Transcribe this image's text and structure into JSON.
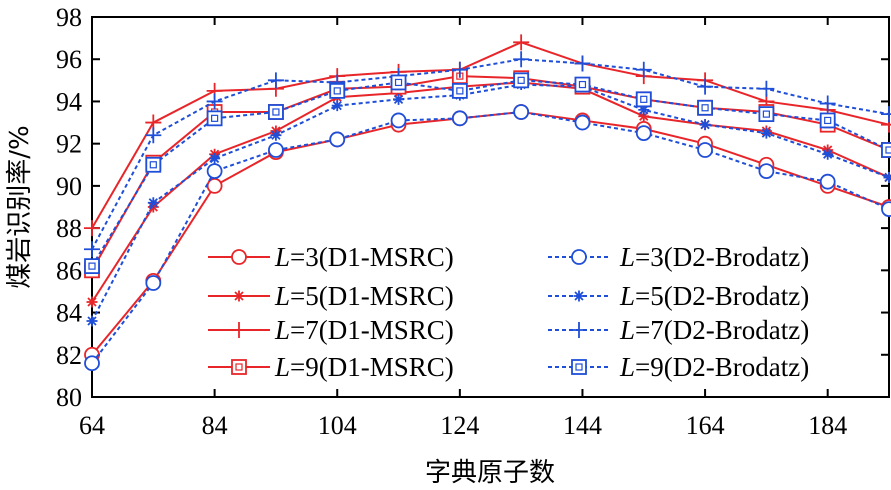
{
  "chart_data": {
    "type": "line",
    "xlabel": "字典原子数",
    "ylabel": "煤岩识别率/%",
    "xlim": [
      64,
      194
    ],
    "ylim": [
      80,
      98
    ],
    "xticks": [
      "64",
      "84",
      "104",
      "124",
      "144",
      "164",
      "184"
    ],
    "yticks": [
      "80",
      "82",
      "84",
      "86",
      "88",
      "90",
      "92",
      "94",
      "96",
      "98"
    ],
    "grid": false,
    "legend_position": "inside-bottom",
    "colors": {
      "D1": "#e8262a",
      "D2": "#1f4fd8"
    },
    "x": [
      64,
      74,
      84,
      94,
      104,
      114,
      124,
      134,
      144,
      154,
      164,
      174,
      184,
      194
    ],
    "series": [
      {
        "name_prefix": "L",
        "name": "=3(D1-MSRC)",
        "group": "D1",
        "marker": "circle",
        "values": [
          82.0,
          85.5,
          90.0,
          91.6,
          92.2,
          92.9,
          93.2,
          93.5,
          93.1,
          92.7,
          92.0,
          91.0,
          90.0,
          89.0
        ]
      },
      {
        "name_prefix": "L",
        "name": "=5(D1-MSRC)",
        "group": "D1",
        "marker": "star",
        "values": [
          84.5,
          89.0,
          91.5,
          92.6,
          94.2,
          94.4,
          94.7,
          94.9,
          94.6,
          93.3,
          92.9,
          92.6,
          91.7,
          90.4
        ]
      },
      {
        "name_prefix": "L",
        "name": "=7(D1-MSRC)",
        "group": "D1",
        "marker": "plus",
        "values": [
          88.0,
          93.0,
          94.5,
          94.6,
          95.2,
          95.4,
          95.5,
          96.8,
          95.8,
          95.2,
          95.0,
          94.0,
          93.6,
          92.9
        ]
      },
      {
        "name_prefix": "L",
        "name": "=9(D1-MSRC)",
        "group": "D1",
        "marker": "square",
        "values": [
          86.0,
          91.1,
          93.5,
          93.5,
          94.6,
          94.7,
          95.2,
          95.1,
          94.7,
          94.1,
          93.7,
          93.5,
          92.9,
          91.7
        ]
      },
      {
        "name_prefix": "L",
        "name": "=3(D2-Brodatz)",
        "group": "D2",
        "marker": "circle",
        "values": [
          81.6,
          85.4,
          90.7,
          91.7,
          92.2,
          93.1,
          93.2,
          93.5,
          93.0,
          92.5,
          91.7,
          90.7,
          90.2,
          88.9
        ]
      },
      {
        "name_prefix": "L",
        "name": "=5(D2-Brodatz)",
        "group": "D2",
        "marker": "star",
        "values": [
          83.6,
          89.2,
          91.3,
          92.4,
          93.8,
          94.1,
          94.3,
          94.8,
          94.7,
          93.6,
          92.9,
          92.5,
          91.5,
          90.4
        ]
      },
      {
        "name_prefix": "L",
        "name": "=7(D2-Brodatz)",
        "group": "D2",
        "marker": "plus",
        "values": [
          87.0,
          92.4,
          94.0,
          95.0,
          94.9,
          95.2,
          95.5,
          96.0,
          95.8,
          95.5,
          94.7,
          94.6,
          93.9,
          93.4
        ]
      },
      {
        "name_prefix": "L",
        "name": "=9(D2-Brodatz)",
        "group": "D2",
        "marker": "square",
        "values": [
          86.2,
          91.0,
          93.2,
          93.5,
          94.5,
          94.9,
          94.5,
          95.0,
          94.8,
          94.1,
          93.7,
          93.4,
          93.1,
          91.7
        ]
      }
    ]
  }
}
